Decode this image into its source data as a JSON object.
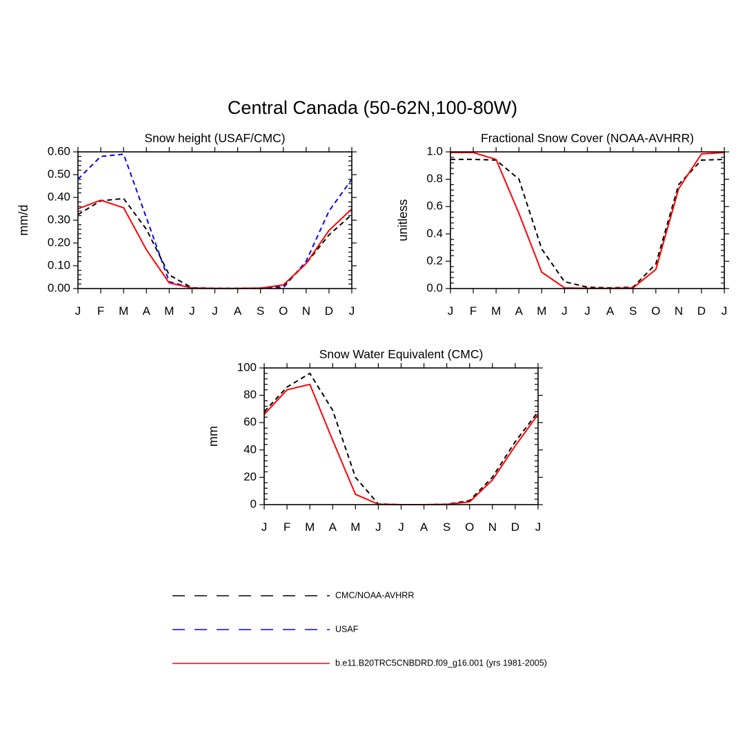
{
  "figure": {
    "title": "Central Canada (50-62N,100-80W)"
  },
  "months": [
    "J",
    "F",
    "M",
    "A",
    "M",
    "J",
    "J",
    "A",
    "S",
    "O",
    "N",
    "D",
    "J"
  ],
  "series_styles": {
    "obs": {
      "name": "CMC/NOAA-AVHRR",
      "color": "#000000",
      "dash": "dashed"
    },
    "usaf": {
      "name": "USAF",
      "color": "#0000ff",
      "dash": "dashed"
    },
    "model": {
      "name": "b.e11.B20TRC5CNBDRD.f09_g16.001 (yrs 1981-2005)",
      "color": "#ff0000",
      "dash": "solid"
    }
  },
  "chart_data": [
    {
      "type": "line",
      "id": "snow-height",
      "title": "Snow height (USAF/CMC)",
      "xlabel": "",
      "ylabel": "mm/d",
      "ylim": [
        0,
        0.6
      ],
      "yticks": [
        "0.00",
        "0.10",
        "0.20",
        "0.30",
        "0.40",
        "0.50",
        "0.60"
      ],
      "categories": [
        "J",
        "F",
        "M",
        "A",
        "M",
        "J",
        "J",
        "A",
        "S",
        "O",
        "N",
        "D",
        "J"
      ],
      "series": [
        {
          "name": "USAF",
          "style": "usaf",
          "values": [
            0.48,
            0.58,
            0.59,
            0.31,
            0.03,
            0.003,
            0.001,
            0.001,
            0.001,
            0.004,
            0.12,
            0.34,
            0.48
          ]
        },
        {
          "name": "CMC/NOAA-AVHRR",
          "style": "obs",
          "values": [
            0.325,
            0.385,
            0.395,
            0.26,
            0.06,
            0.003,
            0.001,
            0.001,
            0.002,
            0.012,
            0.11,
            0.235,
            0.325
          ]
        },
        {
          "name": "b.e11.B20TRC5CNBDRD.f09_g16.001 (yrs 1981-2005)",
          "style": "model",
          "values": [
            0.35,
            0.388,
            0.355,
            0.17,
            0.025,
            0.002,
            0.001,
            0.001,
            0.002,
            0.016,
            0.11,
            0.255,
            0.35
          ]
        }
      ]
    },
    {
      "type": "line",
      "id": "fractional-snow-cover",
      "title": "Fractional Snow Cover (NOAA-AVHRR)",
      "xlabel": "",
      "ylabel": "unitless",
      "ylim": [
        0,
        1.0
      ],
      "yticks": [
        "0.0",
        "0.2",
        "0.4",
        "0.6",
        "0.8",
        "1.0"
      ],
      "categories": [
        "J",
        "F",
        "M",
        "A",
        "M",
        "J",
        "J",
        "A",
        "S",
        "O",
        "N",
        "D",
        "J"
      ],
      "series": [
        {
          "name": "CMC/NOAA-AVHRR",
          "style": "obs",
          "values": [
            0.945,
            0.945,
            0.94,
            0.8,
            0.29,
            0.05,
            0.01,
            0.005,
            0.01,
            0.18,
            0.76,
            0.94,
            0.945
          ]
        },
        {
          "name": "b.e11.B20TRC5CNBDRD.f09_g16.001 (yrs 1981-2005)",
          "style": "model",
          "values": [
            0.995,
            0.995,
            0.945,
            0.55,
            0.12,
            0.005,
            0.002,
            0.002,
            0.005,
            0.14,
            0.73,
            0.985,
            0.995
          ]
        }
      ]
    },
    {
      "type": "line",
      "id": "snow-water-equivalent",
      "title": "Snow Water Equivalent (CMC)",
      "xlabel": "",
      "ylabel": "mm",
      "ylim": [
        0,
        100
      ],
      "yticks": [
        "0",
        "20",
        "40",
        "60",
        "80",
        "100"
      ],
      "categories": [
        "J",
        "F",
        "M",
        "A",
        "M",
        "J",
        "J",
        "A",
        "S",
        "O",
        "N",
        "D",
        "J"
      ],
      "series": [
        {
          "name": "CMC/NOAA-AVHRR",
          "style": "obs",
          "values": [
            68,
            86,
            96,
            69,
            20,
            0.5,
            0,
            0,
            0.3,
            3,
            20,
            46,
            68
          ]
        },
        {
          "name": "b.e11.B20TRC5CNBDRD.f09_g16.001 (yrs 1981-2005)",
          "style": "model",
          "values": [
            66,
            84,
            88,
            47,
            7.5,
            0.3,
            0,
            0,
            0.2,
            2,
            18,
            43,
            66
          ]
        }
      ]
    }
  ],
  "legend": {
    "placement": "bottom-center",
    "entries": [
      {
        "label": "CMC/NOAA-AVHRR",
        "style": "obs"
      },
      {
        "label": "USAF",
        "style": "usaf"
      },
      {
        "label": "b.e11.B20TRC5CNBDRD.f09_g16.001 (yrs 1981-2005)",
        "style": "model"
      }
    ]
  }
}
